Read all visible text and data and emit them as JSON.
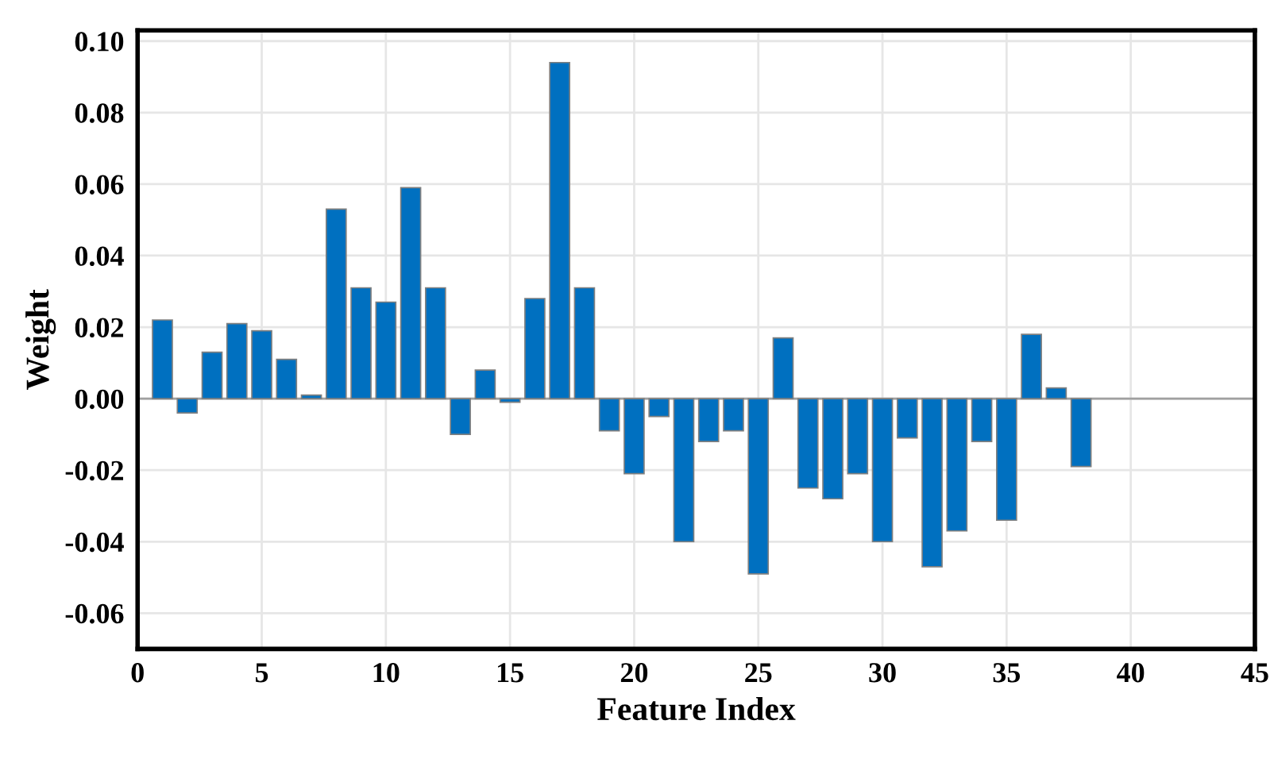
{
  "chart_data": {
    "type": "bar",
    "xlabel": "Feature Index",
    "ylabel": "Weight",
    "x": [
      1,
      2,
      3,
      4,
      5,
      6,
      7,
      8,
      9,
      10,
      11,
      12,
      13,
      14,
      15,
      16,
      17,
      18,
      19,
      20,
      21,
      22,
      23,
      24,
      25,
      26,
      27,
      28,
      29,
      30,
      31,
      32,
      33,
      34,
      35,
      36,
      37,
      38
    ],
    "values": [
      0.022,
      -0.004,
      0.013,
      0.021,
      0.019,
      0.011,
      0.001,
      0.053,
      0.031,
      0.027,
      0.059,
      0.031,
      -0.01,
      0.008,
      -0.001,
      0.028,
      0.094,
      0.031,
      -0.009,
      -0.021,
      -0.005,
      -0.04,
      -0.012,
      -0.009,
      -0.049,
      0.017,
      -0.025,
      -0.028,
      -0.021,
      -0.04,
      -0.011,
      -0.047,
      -0.037,
      -0.012,
      -0.034,
      0.018,
      0.003,
      -0.019
    ],
    "color": "#0070c0",
    "xlim": [
      0,
      45
    ],
    "xticks": [
      0,
      5,
      10,
      15,
      20,
      25,
      30,
      35,
      40,
      45
    ],
    "ylim": [
      -0.07,
      0.103
    ],
    "yticks": [
      {
        "value": -0.06,
        "label": "-0.06"
      },
      {
        "value": -0.04,
        "label": "-0.04"
      },
      {
        "value": -0.02,
        "label": "-0.02"
      },
      {
        "value": 0,
        "label": "0.00"
      },
      {
        "value": 0.02,
        "label": "0.02"
      },
      {
        "value": 0.04,
        "label": "0.04"
      },
      {
        "value": 0.06,
        "label": "0.06"
      },
      {
        "value": 0.08,
        "label": "0.08"
      },
      {
        "value": 0.1,
        "label": "0.10"
      }
    ],
    "ref_lines": [
      {
        "axis": "y",
        "value": 0,
        "color": "#a0a0a0"
      }
    ],
    "grid": true
  }
}
